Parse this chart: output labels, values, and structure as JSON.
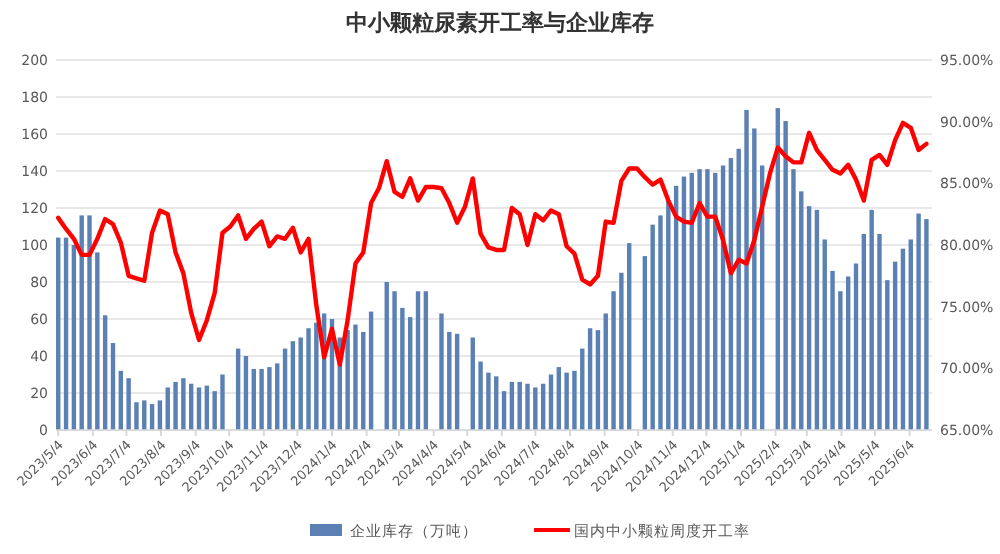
{
  "chart_data": {
    "type": "bar",
    "title": "中小颗粒尿素开工率与企业库存",
    "x": [
      "2023-05-04",
      "2023-05-11",
      "2023-05-18",
      "2023-05-25",
      "2023-06-01",
      "2023-06-08",
      "2023-06-15",
      "2023-06-22",
      "2023-06-29",
      "2023-07-06",
      "2023-07-13",
      "2023-07-20",
      "2023-07-27",
      "2023-08-03",
      "2023-08-10",
      "2023-08-17",
      "2023-08-24",
      "2023-08-31",
      "2023-09-07",
      "2023-09-14",
      "2023-09-21",
      "2023-09-28",
      "2023-10-05",
      "2023-10-12",
      "2023-10-19",
      "2023-10-26",
      "2023-11-02",
      "2023-11-09",
      "2023-11-16",
      "2023-11-23",
      "2023-11-30",
      "2023-12-07",
      "2023-12-14",
      "2023-12-21",
      "2023-12-28",
      "2024-01-04",
      "2024-01-11",
      "2024-01-18",
      "2024-01-25",
      "2024-02-01",
      "2024-02-08",
      "2024-02-15",
      "2024-02-22",
      "2024-02-29",
      "2024-03-07",
      "2024-03-14",
      "2024-03-21",
      "2024-03-28",
      "2024-04-04",
      "2024-04-11",
      "2024-04-18",
      "2024-04-25",
      "2024-05-02",
      "2024-05-09",
      "2024-05-16",
      "2024-05-23",
      "2024-05-30",
      "2024-06-06",
      "2024-06-13",
      "2024-06-20",
      "2024-06-27",
      "2024-07-04",
      "2024-07-11",
      "2024-07-18",
      "2024-07-25",
      "2024-08-01",
      "2024-08-08",
      "2024-08-15",
      "2024-08-22",
      "2024-08-29",
      "2024-09-05",
      "2024-09-12",
      "2024-09-19",
      "2024-09-26",
      "2024-10-03",
      "2024-10-10",
      "2024-10-17",
      "2024-10-24",
      "2024-10-31",
      "2024-11-07",
      "2024-11-14",
      "2024-11-21",
      "2024-11-28",
      "2024-12-05",
      "2024-12-12",
      "2024-12-19",
      "2024-12-26",
      "2025-01-02",
      "2025-01-09",
      "2025-01-16",
      "2025-01-23",
      "2025-01-30",
      "2025-02-06",
      "2025-02-13",
      "2025-02-20",
      "2025-02-27",
      "2025-03-06",
      "2025-03-13",
      "2025-03-20",
      "2025-03-27",
      "2025-04-03",
      "2025-04-10",
      "2025-04-17",
      "2025-04-24",
      "2025-05-01",
      "2025-05-08",
      "2025-05-15",
      "2025-05-22",
      "2025-05-29",
      "2025-06-05",
      "2025-06-12",
      "2025-06-19"
    ],
    "series": [
      {
        "name": "企业库存（万吨）",
        "color": "#5a80b4",
        "values": [
          104,
          104,
          100,
          116,
          116,
          96,
          62,
          47,
          32,
          28,
          15,
          16,
          14,
          16,
          23,
          26,
          28,
          25,
          23,
          24,
          21,
          30,
          null,
          44,
          40,
          33,
          33,
          34,
          36,
          44,
          48,
          50,
          55,
          58,
          63,
          60,
          50,
          54,
          57,
          53,
          64,
          null,
          80,
          75,
          66,
          61,
          75,
          75,
          null,
          63,
          53,
          52,
          null,
          50,
          37,
          31,
          29,
          21,
          26,
          26,
          25,
          23,
          25,
          30,
          34,
          31,
          32,
          44,
          55,
          54,
          63,
          75,
          85,
          101,
          null,
          94,
          111,
          116,
          124,
          132,
          137,
          139,
          141,
          141,
          139,
          143,
          147,
          152,
          173,
          163,
          143,
          null,
          174,
          167,
          141,
          129,
          121,
          119,
          103,
          86,
          75,
          83,
          90,
          106,
          119,
          106,
          81,
          91,
          98,
          103,
          117,
          114
        ]
      },
      {
        "name": "国内中小颗粒周度开工率",
        "type": "line",
        "axis": "y2",
        "color": "#ff0000",
        "values": [
          82.2,
          81.3,
          80.5,
          79.2,
          79.2,
          80.5,
          82.1,
          81.7,
          80.2,
          77.5,
          77.3,
          77.1,
          81.0,
          82.8,
          82.5,
          79.4,
          77.7,
          74.5,
          72.3,
          73.9,
          76.1,
          81.0,
          81.5,
          82.4,
          80.5,
          81.3,
          81.9,
          79.9,
          80.7,
          80.5,
          81.4,
          79.4,
          80.5,
          75.1,
          70.9,
          73.2,
          70.3,
          73.9,
          78.5,
          79.4,
          83.4,
          84.6,
          86.8,
          84.3,
          83.9,
          85.4,
          83.6,
          84.7,
          84.7,
          84.6,
          83.4,
          81.8,
          83.1,
          85.4,
          80.9,
          79.8,
          79.6,
          79.6,
          83.0,
          82.5,
          80.0,
          82.5,
          82.0,
          82.8,
          82.5,
          79.9,
          79.3,
          77.2,
          76.8,
          77.5,
          81.9,
          81.8,
          85.2,
          86.2,
          86.2,
          85.5,
          84.9,
          85.3,
          83.6,
          82.3,
          81.9,
          81.8,
          83.4,
          82.3,
          82.3,
          80.4,
          77.7,
          78.8,
          78.5,
          80.4,
          83.1,
          85.8,
          87.9,
          87.2,
          86.7,
          86.7,
          89.1,
          87.7,
          86.9,
          86.1,
          85.8,
          86.5,
          85.3,
          83.6,
          86.9,
          87.3,
          86.5,
          88.5,
          89.9,
          89.5,
          87.7,
          88.2
        ]
      }
    ],
    "xlim": [
      "2023-05-02",
      "2025-06-24"
    ],
    "xticks": [
      {
        "value": "2023-05-04",
        "label": "2023/5/4"
      },
      {
        "value": "2023-06-04",
        "label": "2023/6/4"
      },
      {
        "value": "2023-07-04",
        "label": "2023/7/4"
      },
      {
        "value": "2023-08-04",
        "label": "2023/8/4"
      },
      {
        "value": "2023-09-04",
        "label": "2023/9/4"
      },
      {
        "value": "2023-10-04",
        "label": "2023/10/4"
      },
      {
        "value": "2023-11-04",
        "label": "2023/11/4"
      },
      {
        "value": "2023-12-04",
        "label": "2023/12/4"
      },
      {
        "value": "2024-01-04",
        "label": "2024/1/4"
      },
      {
        "value": "2024-02-04",
        "label": "2024/2/4"
      },
      {
        "value": "2024-03-04",
        "label": "2024/3/4"
      },
      {
        "value": "2024-04-04",
        "label": "2024/4/4"
      },
      {
        "value": "2024-05-04",
        "label": "2024/5/4"
      },
      {
        "value": "2024-06-04",
        "label": "2024/6/4"
      },
      {
        "value": "2024-07-04",
        "label": "2024/7/4"
      },
      {
        "value": "2024-08-04",
        "label": "2024/8/4"
      },
      {
        "value": "2024-09-04",
        "label": "2024/9/4"
      },
      {
        "value": "2024-10-04",
        "label": "2024/10/4"
      },
      {
        "value": "2024-11-04",
        "label": "2024/11/4"
      },
      {
        "value": "2024-12-04",
        "label": "2024/12/4"
      },
      {
        "value": "2025-01-04",
        "label": "2025/1/4"
      },
      {
        "value": "2025-02-04",
        "label": "2025/2/4"
      },
      {
        "value": "2025-03-04",
        "label": "2025/3/4"
      },
      {
        "value": "2025-04-04",
        "label": "2025/4/4"
      },
      {
        "value": "2025-05-04",
        "label": "2025/5/4"
      },
      {
        "value": "2025-06-04",
        "label": "2025/6/4"
      }
    ],
    "ylim": [
      0,
      200
    ],
    "yticks": [
      0,
      20,
      40,
      60,
      80,
      100,
      120,
      140,
      160,
      180,
      200
    ],
    "y2lim": [
      65,
      95
    ],
    "y2ticks": [
      {
        "value": 65,
        "label": "65.00%"
      },
      {
        "value": 70,
        "label": "70.00%"
      },
      {
        "value": 75,
        "label": "75.00%"
      },
      {
        "value": 80,
        "label": "80.00%"
      },
      {
        "value": 85,
        "label": "85.00%"
      },
      {
        "value": 90,
        "label": "90.00%"
      },
      {
        "value": 95,
        "label": "95.00%"
      }
    ],
    "grid": "y",
    "legend": "bottom",
    "marker": "none",
    "line_style": "solid"
  }
}
